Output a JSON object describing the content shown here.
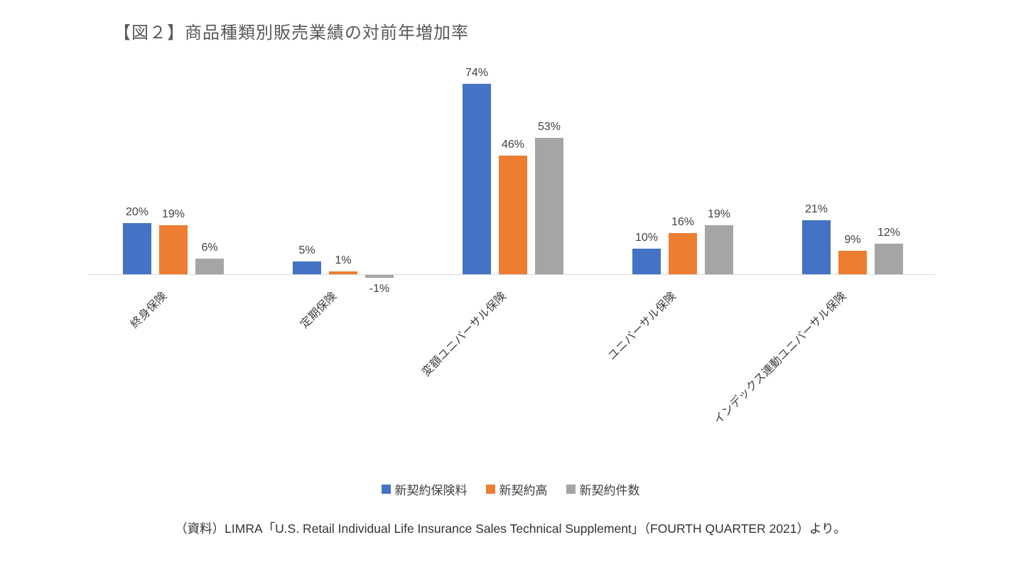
{
  "title": "【図２】商品種類別販売業績の対前年増加率",
  "source": "（資料）LIMRA「U.S. Retail Individual Life Insurance Sales Technical Supplement」（FOURTH QUARTER 2021）より。",
  "chart_data": {
    "type": "bar",
    "title": "【図２】商品種類別販売業績の対前年増加率",
    "categories": [
      "終身保険",
      "定期保険",
      "変額ユニバーサル保険",
      "ユニバーサル保険",
      "インデックス連動ユニバーサル保険"
    ],
    "series": [
      {
        "name": "新契約保険料",
        "color": "#4472C4",
        "values": [
          20,
          5,
          74,
          10,
          21
        ]
      },
      {
        "name": "新契約高",
        "color": "#ED7D31",
        "values": [
          19,
          1,
          46,
          16,
          9
        ]
      },
      {
        "name": "新契約件数",
        "color": "#A5A5A5",
        "values": [
          6,
          -1,
          53,
          19,
          12
        ]
      }
    ],
    "value_suffix": "%",
    "xlabel": "",
    "ylabel": "",
    "ylim": [
      -5,
      80
    ],
    "grid": false,
    "legend_position": "bottom"
  }
}
